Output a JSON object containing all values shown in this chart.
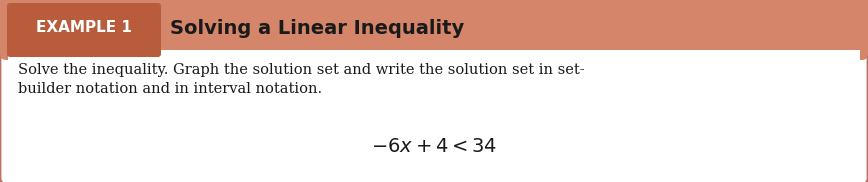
{
  "bg_color": "#ffffff",
  "border_color": "#c07060",
  "header_bg_color": "#d4856a",
  "box_bg_color": "#b85c3c",
  "box_label": "EXAMPLE 1",
  "box_text_color": "#ffffff",
  "title_text": "Solving a Linear Inequality",
  "title_color": "#1a1a1a",
  "body_text_line1": "Solve the inequality. Graph the solution set and write the solution set in set-",
  "body_text_line2": "builder notation and in interval notation.",
  "body_text_color": "#1a1a1a",
  "equation": "$-6x + 4 < 34$",
  "equation_color": "#1a1a1a",
  "figsize": [
    8.68,
    1.82
  ],
  "dpi": 100
}
